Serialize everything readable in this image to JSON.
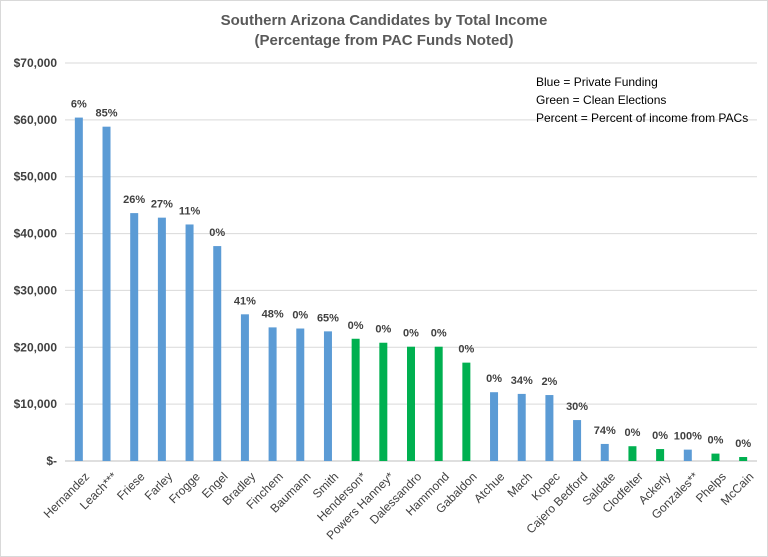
{
  "chart_data": {
    "type": "bar",
    "title": "Southern Arizona Candidates by Total Income",
    "subtitle": "(Percentage from PAC Funds Noted)",
    "xlabel": "",
    "ylabel": "",
    "ylim": [
      0,
      70000
    ],
    "yticks": [
      0,
      10000,
      20000,
      30000,
      40000,
      50000,
      60000,
      70000
    ],
    "ytick_labels": [
      "$-",
      "$10,000",
      "$20,000",
      "$30,000",
      "$40,000",
      "$50,000",
      "$60,000",
      "$70,000"
    ],
    "grid": true,
    "colors": {
      "private": "#5b9bd5",
      "clean": "#00b050"
    },
    "categories": [
      "Hernandez",
      "Leach***",
      "Friese",
      "Farley",
      "Frogge",
      "Engel",
      "Bradley",
      "Finchem",
      "Baumann",
      "Smith",
      "Henderson*",
      "Powers Hanney*",
      "Dalessandro",
      "Hammond",
      "Gabaldon",
      "Atchue",
      "Mach",
      "Kopec",
      "Cajero Bedford",
      "Saldate",
      "Clodfelter",
      "Ackerly",
      "Gonzales**",
      "Phelps",
      "McCain"
    ],
    "values": [
      60400,
      58800,
      43600,
      42800,
      41600,
      37800,
      25800,
      23500,
      23300,
      22800,
      21500,
      20800,
      20100,
      20100,
      17300,
      12100,
      11800,
      11600,
      7200,
      3000,
      2600,
      2100,
      2000,
      1300,
      700
    ],
    "funding": [
      "private",
      "private",
      "private",
      "private",
      "private",
      "private",
      "private",
      "private",
      "private",
      "private",
      "clean",
      "clean",
      "clean",
      "clean",
      "clean",
      "private",
      "private",
      "private",
      "private",
      "private",
      "clean",
      "clean",
      "private",
      "clean",
      "clean"
    ],
    "data_labels": [
      "6%",
      "85%",
      "26%",
      "27%",
      "11%",
      "0%",
      "41%",
      "48%",
      "0%",
      "65%",
      "0%",
      "0%",
      "0%",
      "0%",
      "0%",
      "0%",
      "34%",
      "2%",
      "30%",
      "74%",
      "0%",
      "0%",
      "100%",
      "0%",
      "0%"
    ],
    "legend": {
      "placement": "top-right",
      "lines": [
        "Blue = Private Funding",
        "Green = Clean Elections",
        "Percent = Percent of income from PACs"
      ]
    }
  }
}
